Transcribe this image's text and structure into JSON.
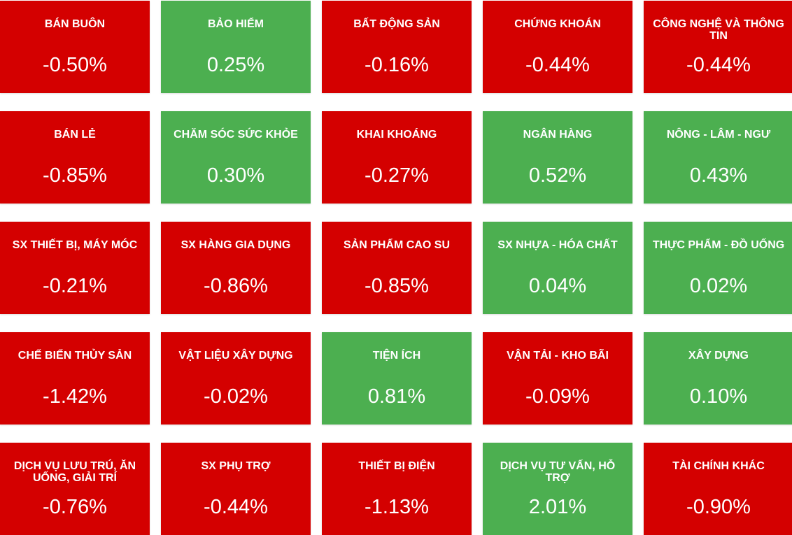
{
  "tiles": [
    {
      "label": "BÁN BUÔN",
      "change": "-0.50%",
      "color": "#d40000"
    },
    {
      "label": "BẢO HIỂM",
      "change": "0.25%",
      "color": "#4caf50"
    },
    {
      "label": "BẤT ĐỘNG SẢN",
      "change": "-0.16%",
      "color": "#d40000"
    },
    {
      "label": "CHỨNG KHOÁN",
      "change": "-0.44%",
      "color": "#d40000"
    },
    {
      "label": "CÔNG NGHỆ VÀ THÔNG TIN",
      "change": "-0.44%",
      "color": "#d40000"
    },
    {
      "label": "BÁN LẺ",
      "change": "-0.85%",
      "color": "#d40000"
    },
    {
      "label": "CHĂM SÓC SỨC KHỎE",
      "change": "0.30%",
      "color": "#4caf50"
    },
    {
      "label": "KHAI KHOÁNG",
      "change": "-0.27%",
      "color": "#d40000"
    },
    {
      "label": "NGÂN HÀNG",
      "change": "0.52%",
      "color": "#4caf50"
    },
    {
      "label": "NÔNG - LÂM - NGƯ",
      "change": "0.43%",
      "color": "#4caf50"
    },
    {
      "label": "SX THIẾT BỊ, MÁY MÓC",
      "change": "-0.21%",
      "color": "#d40000"
    },
    {
      "label": "SX HÀNG GIA DỤNG",
      "change": "-0.86%",
      "color": "#d40000"
    },
    {
      "label": "SẢN PHẨM CAO SU",
      "change": "-0.85%",
      "color": "#d40000"
    },
    {
      "label": "SX NHỰA - HÓA CHẤT",
      "change": "0.04%",
      "color": "#4caf50"
    },
    {
      "label": "THỰC PHẨM - ĐỒ UỐNG",
      "change": "0.02%",
      "color": "#4caf50"
    },
    {
      "label": "CHẾ BIẾN THỦY SẢN",
      "change": "-1.42%",
      "color": "#d40000"
    },
    {
      "label": "VẬT LIỆU XÂY DỰNG",
      "change": "-0.02%",
      "color": "#d40000"
    },
    {
      "label": "TIỆN ÍCH",
      "change": "0.81%",
      "color": "#4caf50"
    },
    {
      "label": "VẬN TẢI - KHO BÃI",
      "change": "-0.09%",
      "color": "#d40000"
    },
    {
      "label": "XÂY DỰNG",
      "change": "0.10%",
      "color": "#4caf50"
    },
    {
      "label": "DỊCH VỤ LƯU TRÚ, ĂN UỐNG, GIẢI TRÍ",
      "change": "-0.76%",
      "color": "#d40000"
    },
    {
      "label": "SX PHỤ TRỢ",
      "change": "-0.44%",
      "color": "#d40000"
    },
    {
      "label": "THIẾT BỊ ĐIỆN",
      "change": "-1.13%",
      "color": "#d40000"
    },
    {
      "label": "DỊCH VỤ TƯ VẤN, HỖ TRỢ",
      "change": "2.01%",
      "color": "#4caf50"
    },
    {
      "label": "TÀI CHÍNH KHÁC",
      "change": "-0.90%",
      "color": "#d40000"
    }
  ]
}
